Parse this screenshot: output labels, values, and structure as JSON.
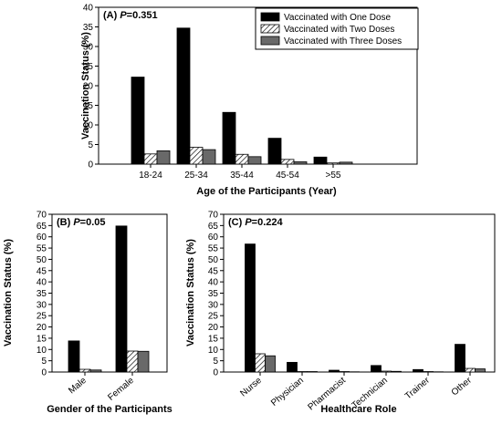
{
  "chart_data": [
    {
      "type": "bar",
      "panel": "(A)",
      "title_prefix": "(A) ",
      "p_italic": "P",
      "p_value": "=0.351",
      "xlabel": "Age of the Participants (Year)",
      "ylabel": "Vaccination Status (%)",
      "ylim": [
        0,
        40
      ],
      "yticks": [
        0,
        5,
        10,
        15,
        20,
        25,
        30,
        35,
        40
      ],
      "categories": [
        "18-24",
        "25-34",
        "35-44",
        "45-54",
        ">55"
      ],
      "tick_rotation": 0,
      "legend_position": "top-right",
      "series": [
        {
          "name": "Vaccinated with One Dose",
          "values": [
            22.2,
            34.7,
            13.2,
            6.6,
            1.8
          ]
        },
        {
          "name": "Vaccinated with Two Doses",
          "values": [
            2.6,
            4.3,
            2.5,
            1.2,
            0.3
          ]
        },
        {
          "name": "Vaccinated with Three Doses",
          "values": [
            3.4,
            3.7,
            1.9,
            0.6,
            0.5
          ]
        }
      ]
    },
    {
      "type": "bar",
      "panel": "(B)",
      "title_prefix": "(B) ",
      "p_italic": "P",
      "p_value": "=0.05",
      "xlabel": "Gender of the Participants",
      "ylabel": "Vaccination Status (%)",
      "ylim": [
        0,
        70
      ],
      "yticks": [
        0,
        5,
        10,
        15,
        20,
        25,
        30,
        35,
        40,
        45,
        50,
        55,
        60,
        65,
        70
      ],
      "categories": [
        "Male",
        "Female"
      ],
      "tick_rotation": -40,
      "series": [
        {
          "name": "Vaccinated with One Dose",
          "values": [
            13.8,
            64.8
          ]
        },
        {
          "name": "Vaccinated with Two Doses",
          "values": [
            1.2,
            9.3
          ]
        },
        {
          "name": "Vaccinated with Three Doses",
          "values": [
            0.9,
            9.2
          ]
        }
      ]
    },
    {
      "type": "bar",
      "panel": "(C)",
      "title_prefix": "(C) ",
      "p_italic": "P",
      "p_value": "=0.224",
      "xlabel": "Healthcare Role",
      "ylabel": "Vaccination Status (%)",
      "ylim": [
        0,
        70
      ],
      "yticks": [
        0,
        5,
        10,
        15,
        20,
        25,
        30,
        35,
        40,
        45,
        50,
        55,
        60,
        65,
        70
      ],
      "categories": [
        "Nurse",
        "Physician",
        "Pharmacist",
        "Technician",
        "Trainer",
        "Other"
      ],
      "tick_rotation": -40,
      "series": [
        {
          "name": "Vaccinated with One Dose",
          "values": [
            56.8,
            4.3,
            0.8,
            2.9,
            1.1,
            12.3
          ]
        },
        {
          "name": "Vaccinated with Two Doses",
          "values": [
            8.1,
            0.2,
            0.2,
            0.4,
            0.2,
            1.6
          ]
        },
        {
          "name": "Vaccinated with Three Doses",
          "values": [
            7.2,
            0.2,
            0.1,
            0.3,
            0.1,
            1.4
          ]
        }
      ]
    }
  ],
  "style": {
    "colors": [
      "#000000",
      "#ffffff",
      "#696969"
    ],
    "patterns": [
      "solid",
      "diagonal-hatch",
      "solid"
    ],
    "bar_outline": "#000000"
  }
}
